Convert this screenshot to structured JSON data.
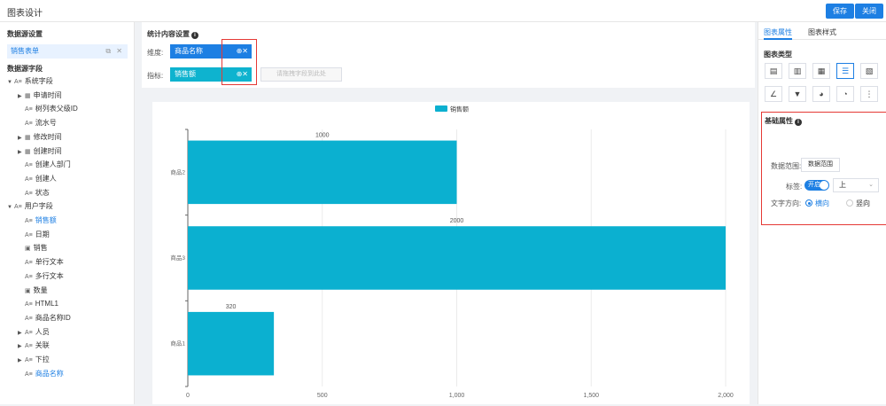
{
  "header": {
    "title": "图表设计",
    "save_label": "保存",
    "close_label": "关闭"
  },
  "left": {
    "datasource_title": "数据源设置",
    "datasource_item": "销售表单",
    "fields_title": "数据源字段",
    "tree": [
      {
        "label": "系统字段",
        "level": 0,
        "caret": "▼",
        "icon": "A≡",
        "hl": false
      },
      {
        "label": "申请时间",
        "level": 1,
        "caret": "▶",
        "icon": "▦",
        "hl": false
      },
      {
        "label": "树列表父级ID",
        "level": 1,
        "caret": "",
        "icon": "A≡",
        "hl": false
      },
      {
        "label": "流水号",
        "level": 1,
        "caret": "",
        "icon": "A≡",
        "hl": false
      },
      {
        "label": "修改时间",
        "level": 1,
        "caret": "▶",
        "icon": "▦",
        "hl": false
      },
      {
        "label": "创建时间",
        "level": 1,
        "caret": "▶",
        "icon": "▦",
        "hl": false
      },
      {
        "label": "创建人部门",
        "level": 1,
        "caret": "",
        "icon": "A≡",
        "hl": false
      },
      {
        "label": "创建人",
        "level": 1,
        "caret": "",
        "icon": "A≡",
        "hl": false
      },
      {
        "label": "状态",
        "level": 1,
        "caret": "",
        "icon": "A≡",
        "hl": false
      },
      {
        "label": "用户字段",
        "level": 0,
        "caret": "▼",
        "icon": "A≡",
        "hl": false
      },
      {
        "label": "销售额",
        "level": 1,
        "caret": "",
        "icon": "A≡",
        "hl": true
      },
      {
        "label": "日期",
        "level": 1,
        "caret": "",
        "icon": "A≡",
        "hl": false
      },
      {
        "label": "销售",
        "level": 1,
        "caret": "",
        "icon": "▣",
        "hl": false
      },
      {
        "label": "单行文本",
        "level": 1,
        "caret": "",
        "icon": "A≡",
        "hl": false
      },
      {
        "label": "多行文本",
        "level": 1,
        "caret": "",
        "icon": "A≡",
        "hl": false
      },
      {
        "label": "数量",
        "level": 1,
        "caret": "",
        "icon": "▣",
        "hl": false
      },
      {
        "label": "HTML1",
        "level": 1,
        "caret": "",
        "icon": "A≡",
        "hl": false
      },
      {
        "label": "商品名称ID",
        "level": 1,
        "caret": "",
        "icon": "A≡",
        "hl": false
      },
      {
        "label": "人员",
        "level": 1,
        "caret": "▶",
        "icon": "A≡",
        "hl": false
      },
      {
        "label": "关联",
        "level": 1,
        "caret": "▶",
        "icon": "A≡",
        "hl": false
      },
      {
        "label": "下拉",
        "level": 1,
        "caret": "▶",
        "icon": "A≡",
        "hl": false
      },
      {
        "label": "商品名称",
        "level": 1,
        "caret": "",
        "icon": "A≡",
        "hl": true
      }
    ]
  },
  "content_settings": {
    "title": "统计内容设置",
    "dimension_label": "维度:",
    "dimension_tag": "商品名称",
    "metric_label": "指标:",
    "metric_tag": "销售额",
    "metric_placeholder": "请拖拽字段到此处"
  },
  "colors": {
    "dimension_tag": "#1d7fe3",
    "metric_tag": "#0eb3cf",
    "bar": "#0bb0d0",
    "accent": "#1d7fe3"
  },
  "chart_data": {
    "type": "bar",
    "orientation": "horizontal",
    "categories": [
      "商品2",
      "商品3",
      "商品1"
    ],
    "series": [
      {
        "name": "销售额",
        "values": [
          1000,
          2000,
          320
        ]
      }
    ],
    "xlim": [
      0,
      2000
    ],
    "xticks": [
      "0",
      "500",
      "1,000",
      "1,500",
      "2,000"
    ],
    "grid": true,
    "legend_position": "top-center",
    "data_labels": [
      "1000",
      "2000",
      "320"
    ]
  },
  "right": {
    "tabs": [
      "图表属性",
      "图表样式"
    ],
    "chart_type_title": "图表类型",
    "chart_types": [
      {
        "icon": "table-icon",
        "glyph": "▤"
      },
      {
        "icon": "column-chart-icon",
        "glyph": "▥"
      },
      {
        "icon": "stacked-column-icon",
        "glyph": "▦"
      },
      {
        "icon": "bar-chart-icon",
        "glyph": "☰"
      },
      {
        "icon": "stacked-bar-icon",
        "glyph": "▧"
      },
      {
        "icon": "line-chart-icon",
        "glyph": "∠"
      },
      {
        "icon": "funnel-chart-icon",
        "glyph": "▼"
      },
      {
        "icon": "pie-chart-icon",
        "glyph": "◕"
      },
      {
        "icon": "gauge-chart-icon",
        "glyph": "◔"
      },
      {
        "icon": "indicator-card-icon",
        "glyph": "⋮"
      }
    ],
    "basic_title": "基础属性",
    "data_range_label": "数据范围:",
    "data_range_btn": "数据范围",
    "label_label": "标签:",
    "switch_text": "开启",
    "label_position": "上",
    "text_dir_label": "文字方向:",
    "dir_horizontal": "横向",
    "dir_vertical": "竖向"
  }
}
